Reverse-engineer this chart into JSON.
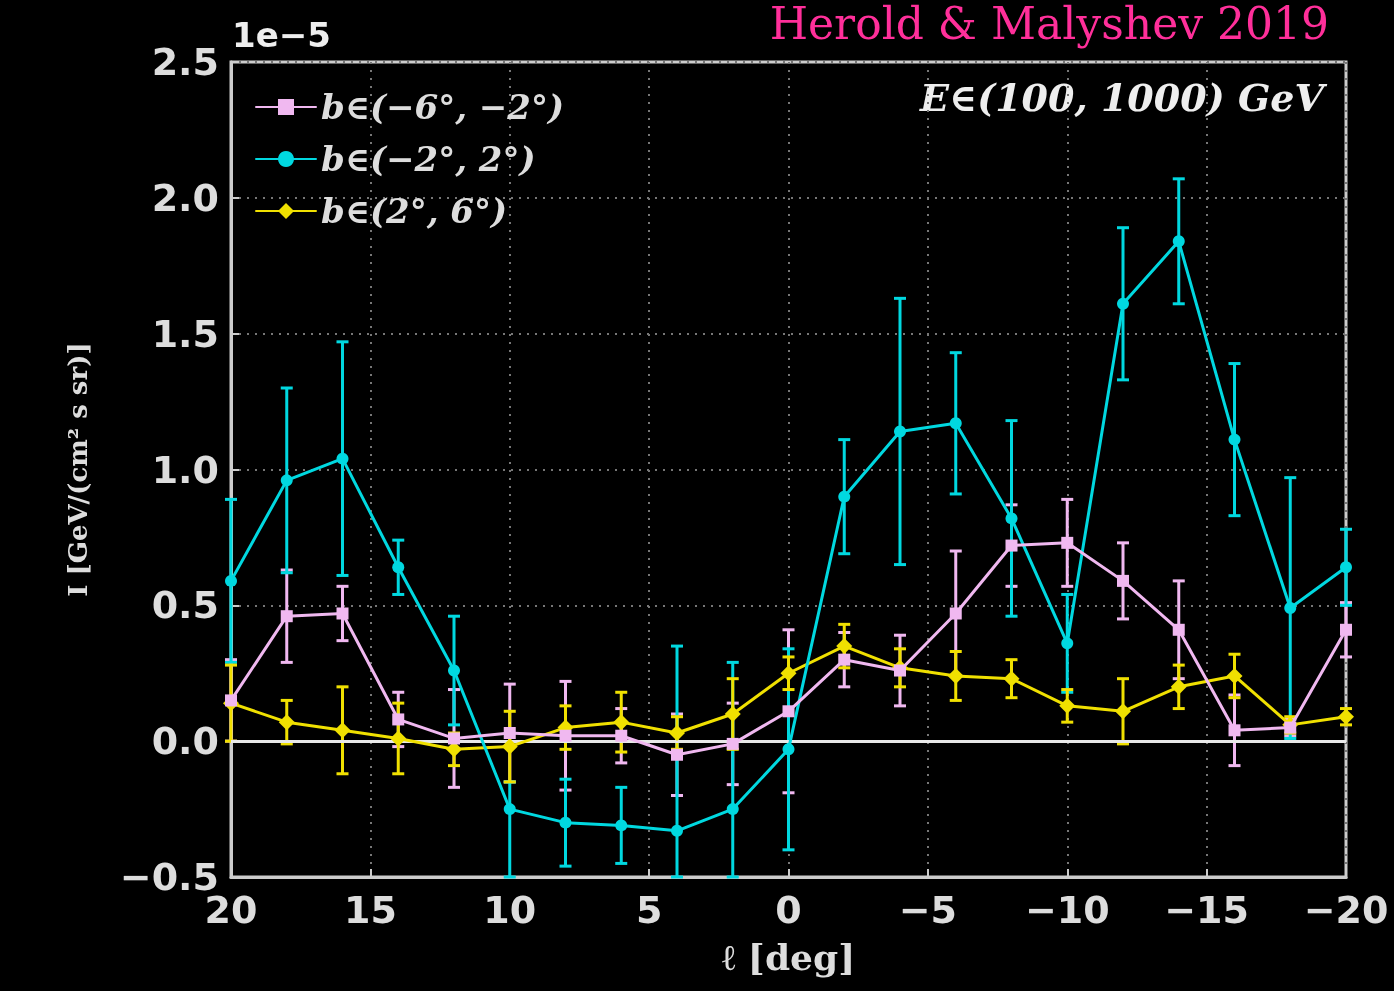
{
  "chart_data": {
    "type": "line",
    "title": "Herold & Malyshev 2019",
    "xlabel": "ℓ [deg]",
    "ylabel": "I [GeV/(cm² s sr)]",
    "annotations": [
      "E∈(100, 1000) GeV",
      "1e−5"
    ],
    "x": [
      20,
      18,
      16,
      14,
      12,
      10,
      8,
      6,
      4,
      2,
      0,
      -2,
      -4,
      -6,
      -8,
      -10,
      -12,
      -14,
      -16,
      -18,
      -20
    ],
    "series": [
      {
        "name": "b∈(−6°, −2°)",
        "color": "#f0b8f0",
        "marker": "square",
        "values": [
          0.15,
          0.46,
          0.47,
          0.08,
          0.01,
          0.03,
          0.02,
          0.02,
          -0.05,
          -0.01,
          0.11,
          0.3,
          0.26,
          0.47,
          0.72,
          0.73,
          0.59,
          0.41,
          0.04,
          0.05,
          0.41
        ],
        "errors": [
          0.15,
          0.17,
          0.1,
          0.1,
          0.18,
          0.18,
          0.2,
          0.1,
          0.15,
          0.15,
          0.3,
          0.1,
          0.13,
          0.23,
          0.15,
          0.16,
          0.14,
          0.18,
          0.13,
          0.03,
          0.1
        ]
      },
      {
        "name": "b∈(−2°, 2°)",
        "color": "#00d8e0",
        "marker": "circle",
        "values": [
          0.59,
          0.96,
          1.04,
          0.64,
          0.26,
          -0.25,
          -0.3,
          -0.31,
          -0.33,
          -0.25,
          -0.03,
          0.9,
          1.14,
          1.17,
          0.82,
          0.36,
          1.61,
          1.84,
          1.11,
          0.49,
          0.64
        ],
        "errors": [
          0.3,
          0.34,
          0.43,
          0.1,
          0.2,
          [
            -0.5,
            -0.15
          ],
          0.16,
          0.14,
          [
            -0.5,
            0.35
          ],
          [
            -0.5,
            0.29
          ],
          0.37,
          0.21,
          0.49,
          0.26,
          0.36,
          0.18,
          0.28,
          0.23,
          0.28,
          0.48,
          0.14
        ]
      },
      {
        "name": "b∈(2°, 6°)",
        "color": "#f0e000",
        "marker": "diamond",
        "values": [
          0.14,
          0.07,
          0.04,
          0.01,
          -0.03,
          -0.02,
          0.05,
          0.07,
          0.03,
          0.1,
          0.25,
          0.35,
          0.27,
          0.24,
          0.23,
          0.13,
          0.11,
          0.2,
          0.24,
          0.06,
          0.09
        ],
        "errors": [
          0.14,
          0.08,
          0.16,
          0.13,
          0.06,
          0.13,
          0.08,
          0.11,
          0.06,
          0.13,
          0.06,
          0.08,
          0.07,
          0.09,
          0.07,
          0.06,
          0.12,
          0.08,
          0.08,
          0.03,
          0.03
        ]
      }
    ],
    "xlim": [
      20,
      -20
    ],
    "xticks": [
      {
        "value": 20,
        "label": "20"
      },
      {
        "value": 15,
        "label": "15"
      },
      {
        "value": 10,
        "label": "10"
      },
      {
        "value": 5,
        "label": "5"
      },
      {
        "value": 0,
        "label": "0"
      },
      {
        "value": -5,
        "label": "−5"
      },
      {
        "value": -10,
        "label": "−10"
      },
      {
        "value": -15,
        "label": "−15"
      },
      {
        "value": -20,
        "label": "−20"
      }
    ],
    "ylim": [
      -0.5,
      2.5
    ],
    "yticks": [
      {
        "value": -0.5,
        "label": "−0.5"
      },
      {
        "value": 0,
        "label": "0.0"
      },
      {
        "value": 0.5,
        "label": "0.5"
      },
      {
        "value": 1,
        "label": "1.0"
      },
      {
        "value": 1.5,
        "label": "1.5"
      },
      {
        "value": 2,
        "label": "2.0"
      },
      {
        "value": 2.5,
        "label": "2.5"
      }
    ],
    "ref_lines": [
      {
        "axis": "y",
        "value": 0,
        "color": "#e8e8e8"
      }
    ],
    "grid": true,
    "legend": "top left",
    "line_style": "solid"
  }
}
